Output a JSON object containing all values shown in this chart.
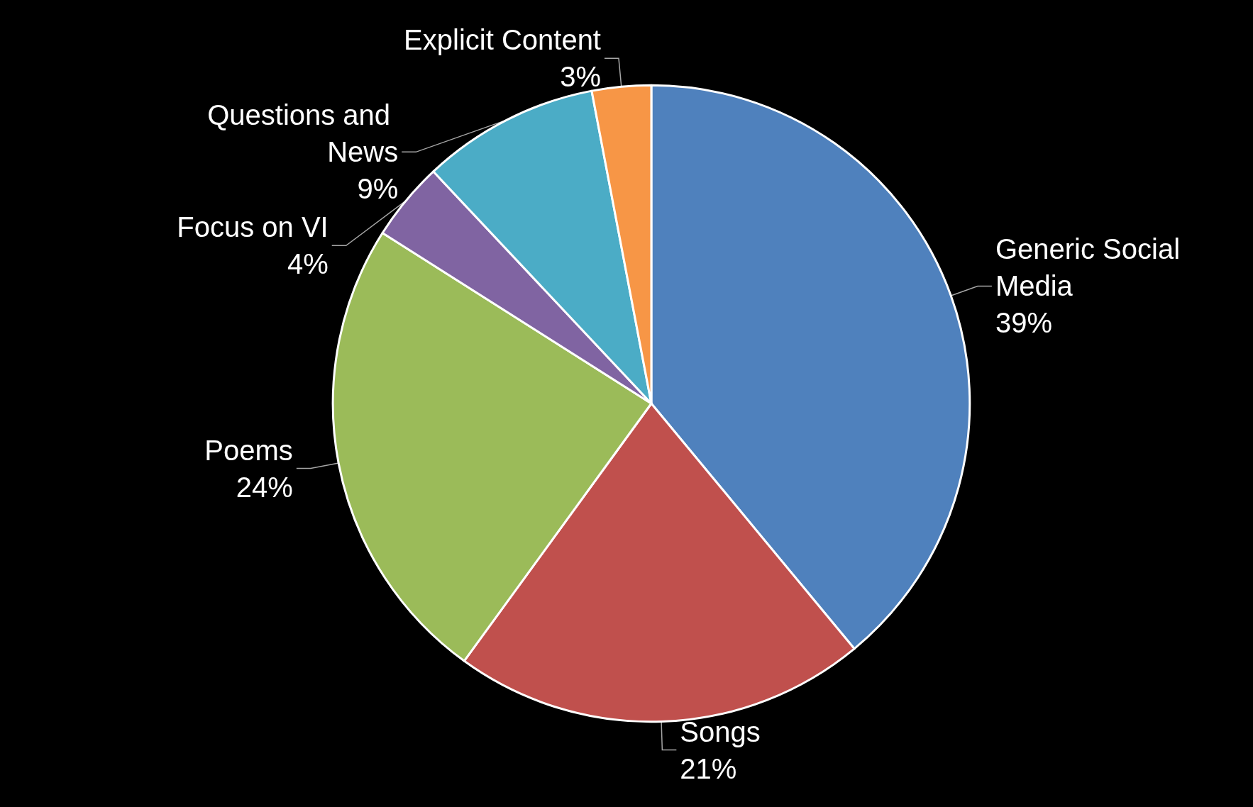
{
  "chart_data": {
    "type": "pie",
    "categories": [
      "Generic Social Media",
      "Songs",
      "Poems",
      "Focus on VI",
      "Questions and News",
      "Explicit Content"
    ],
    "values": [
      39,
      21,
      24,
      4,
      9,
      3
    ],
    "colors": [
      "#4f81bd",
      "#c0504d",
      "#9bbb59",
      "#8064a2",
      "#4bacc6",
      "#f79646"
    ],
    "value_labels": [
      "39%",
      "21%",
      "24%",
      "4%",
      "9%",
      "3%"
    ],
    "legend": false
  }
}
